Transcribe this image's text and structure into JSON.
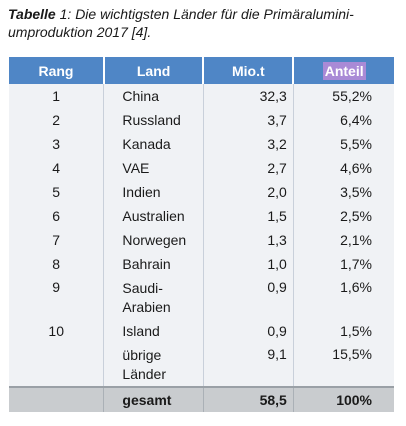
{
  "caption": {
    "label": "Tabelle",
    "text": " 1: Die wichtigsten Länder für die Primäralumini-umproduktion 2017 [4]."
  },
  "table": {
    "headers": [
      "Rang",
      "Land",
      "Mio.t",
      "Anteil"
    ],
    "rows": [
      {
        "rank": "1",
        "land": "China",
        "mio": "32,3",
        "anteil": "55,2%"
      },
      {
        "rank": "2",
        "land": "Russland",
        "mio": "3,7",
        "anteil": "6,4%"
      },
      {
        "rank": "3",
        "land": "Kanada",
        "mio": "3,2",
        "anteil": "5,5%"
      },
      {
        "rank": "4",
        "land": "VAE",
        "mio": "2,7",
        "anteil": "4,6%"
      },
      {
        "rank": "5",
        "land": "Indien",
        "mio": "2,0",
        "anteil": "3,5%"
      },
      {
        "rank": "6",
        "land": "Australien",
        "mio": "1,5",
        "anteil": "2,5%"
      },
      {
        "rank": "7",
        "land": "Norwegen",
        "mio": "1,3",
        "anteil": "2,1%"
      },
      {
        "rank": "8",
        "land": "Bahrain",
        "mio": "1,0",
        "anteil": "1,7%"
      },
      {
        "rank": "9",
        "land": "Saudi-\nArabien",
        "mio": "0,9",
        "anteil": "1,6%"
      },
      {
        "rank": "10",
        "land": "Island",
        "mio": "0,9",
        "anteil": "1,5%"
      },
      {
        "rank": "",
        "land": "übrige\nLänder",
        "mio": "9,1",
        "anteil": "15,5%"
      }
    ],
    "total": {
      "rank": "",
      "land": "gesamt",
      "mio": "58,5",
      "anteil": "100%"
    }
  },
  "colors": {
    "header_bg": "#4f86c6",
    "highlight": "#a98ad6",
    "row_bg": "#f0f2f5",
    "total_bg": "#c9cccf"
  }
}
